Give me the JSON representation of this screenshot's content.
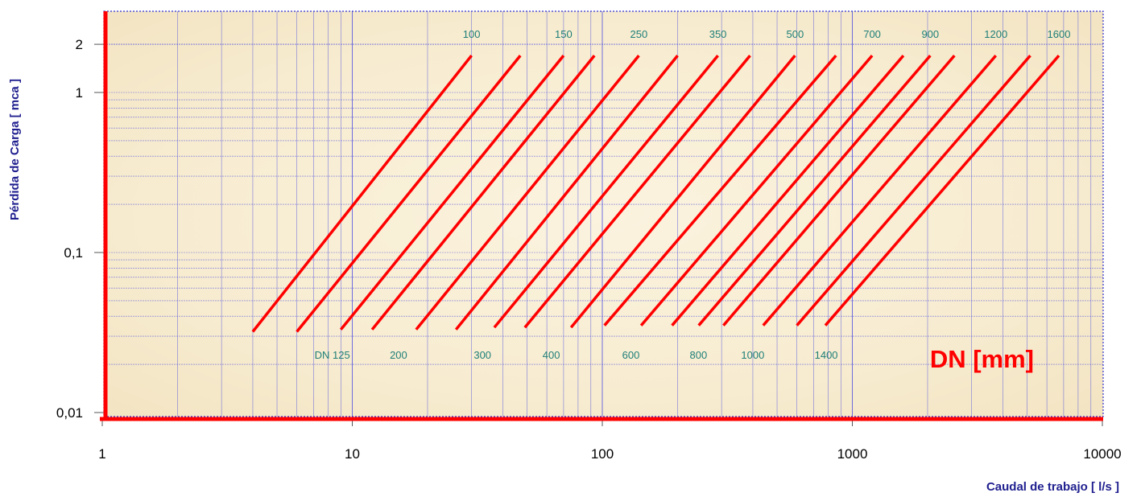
{
  "chart_data": {
    "type": "line",
    "title": "",
    "xlabel": "Caudal de trabajo [ l/s ]",
    "ylabel": "Pérdida de Carga [ mca ]",
    "legend_title": "DN [mm]",
    "x_scale": "log",
    "y_scale": "log",
    "xlim": [
      1,
      10000
    ],
    "ylim": [
      0.01,
      2
    ],
    "x_ticks": [
      1,
      10,
      100,
      1000,
      10000
    ],
    "x_tick_labels": [
      "1",
      "10",
      "100",
      "1000",
      "10000"
    ],
    "y_ticks": [
      0.01,
      0.1,
      1,
      2
    ],
    "y_tick_labels": [
      "0,01",
      "0,1",
      "1",
      "2"
    ],
    "grid": true,
    "series": [
      {
        "name": "100",
        "x": [
          4,
          30
        ],
        "y": [
          0.032,
          1.7
        ],
        "label_at": "top"
      },
      {
        "name": "DN 125",
        "x": [
          6,
          47
        ],
        "y": [
          0.032,
          1.7
        ],
        "label_at": "bottom"
      },
      {
        "name": "150",
        "x": [
          9,
          70
        ],
        "y": [
          0.033,
          1.7
        ],
        "label_at": "top"
      },
      {
        "name": "200",
        "x": [
          12,
          93
        ],
        "y": [
          0.033,
          1.7
        ],
        "label_at": "bottom"
      },
      {
        "name": "250",
        "x": [
          18,
          140
        ],
        "y": [
          0.033,
          1.7
        ],
        "label_at": "top"
      },
      {
        "name": "300",
        "x": [
          26,
          200
        ],
        "y": [
          0.033,
          1.7
        ],
        "label_at": "bottom"
      },
      {
        "name": "350",
        "x": [
          37,
          290
        ],
        "y": [
          0.034,
          1.7
        ],
        "label_at": "top"
      },
      {
        "name": "400",
        "x": [
          49,
          390
        ],
        "y": [
          0.034,
          1.7
        ],
        "label_at": "bottom"
      },
      {
        "name": "500",
        "x": [
          75,
          590
        ],
        "y": [
          0.034,
          1.7
        ],
        "label_at": "top"
      },
      {
        "name": "600",
        "x": [
          102,
          860
        ],
        "y": [
          0.035,
          1.7
        ],
        "label_at": "bottom"
      },
      {
        "name": "700",
        "x": [
          143,
          1200
        ],
        "y": [
          0.035,
          1.7
        ],
        "label_at": "top"
      },
      {
        "name": "800",
        "x": [
          190,
          1600
        ],
        "y": [
          0.035,
          1.7
        ],
        "label_at": "bottom"
      },
      {
        "name": "900",
        "x": [
          243,
          2050
        ],
        "y": [
          0.035,
          1.7
        ],
        "label_at": "top"
      },
      {
        "name": "1000",
        "x": [
          305,
          2560
        ],
        "y": [
          0.035,
          1.7
        ],
        "label_at": "bottom"
      },
      {
        "name": "1200",
        "x": [
          440,
          3750
        ],
        "y": [
          0.035,
          1.7
        ],
        "label_at": "top"
      },
      {
        "name": "1400",
        "x": [
          600,
          5150
        ],
        "y": [
          0.035,
          1.7
        ],
        "label_at": "bottom"
      },
      {
        "name": "1600",
        "x": [
          780,
          6700
        ],
        "y": [
          0.035,
          1.7
        ],
        "label_at": "top"
      }
    ],
    "colors": {
      "series": "#ff0000",
      "axis_lines": "#ff0000",
      "grid": "#5050e0",
      "plot_background": "#f8efd6",
      "dn_label": "#1e7e78",
      "axis_title": "#1f1f8f"
    }
  }
}
